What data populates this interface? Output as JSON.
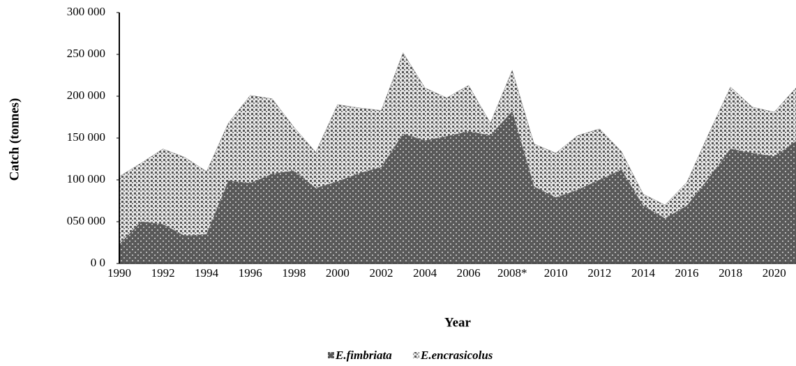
{
  "chart_data": {
    "type": "area",
    "stacked": true,
    "x_label": "Year",
    "y_label": "Catch (tonnes)",
    "categories": [
      "1990",
      null,
      "1992",
      null,
      "1994",
      null,
      "1996",
      null,
      "1998",
      null,
      "2000",
      null,
      "2002",
      null,
      "2004",
      null,
      "2006",
      null,
      "2008*",
      null,
      "2010",
      null,
      "2012",
      null,
      "2014",
      null,
      "2016",
      null,
      "2018",
      null,
      "2020",
      null
    ],
    "series": [
      {
        "name": "E.fimbriata",
        "color": "#595959",
        "values": [
          23000,
          50000,
          47000,
          33000,
          35000,
          99000,
          96000,
          107000,
          111000,
          90000,
          98000,
          108000,
          115000,
          155000,
          147000,
          152000,
          158000,
          153000,
          182000,
          92000,
          79000,
          88000,
          100000,
          112000,
          69000,
          54000,
          69000,
          102000,
          137000,
          132000,
          128000,
          146000
        ]
      },
      {
        "name": "E.encrasicolus",
        "color": "#7f7f7f",
        "values": [
          81000,
          70000,
          90000,
          94000,
          75000,
          69000,
          105000,
          90000,
          52000,
          43000,
          92000,
          78000,
          68000,
          97000,
          63000,
          46000,
          55000,
          15000,
          49000,
          51000,
          53000,
          65000,
          61000,
          22000,
          14000,
          16000,
          28000,
          53000,
          74000,
          55000,
          53000,
          64000
        ]
      }
    ],
    "ylim": [
      0,
      300000
    ],
    "yticks": [
      {
        "value": 0,
        "label": "0 0"
      },
      {
        "value": 50000,
        "label": "050 000"
      },
      {
        "value": 100000,
        "label": "100 000"
      },
      {
        "value": 150000,
        "label": "150 000"
      },
      {
        "value": 200000,
        "label": "200 000"
      },
      {
        "value": 250000,
        "label": "250 000"
      },
      {
        "value": 300000,
        "label": "300 000"
      }
    ],
    "grid": false,
    "legend": "bottom"
  }
}
